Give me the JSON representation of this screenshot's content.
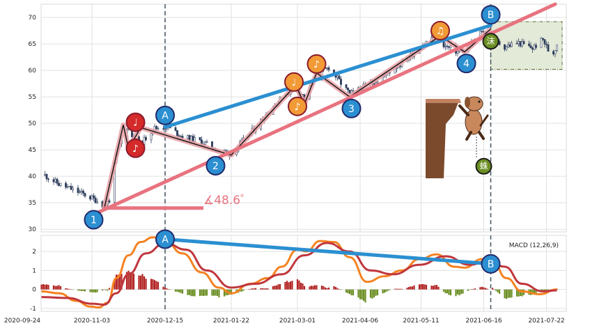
{
  "chart_data": [
    {
      "type": "candlestick",
      "title": "",
      "x_range": [
        "2020-09-24",
        "2021-08-02"
      ],
      "ylim": [
        29.5,
        72.5
      ],
      "y_ticks": [
        30,
        35,
        40,
        45,
        50,
        55,
        60,
        65,
        70
      ],
      "grid": true,
      "price_path": [
        [
          "2020-10-07",
          40.2
        ],
        [
          "2020-10-15",
          38.5
        ],
        [
          "2020-10-22",
          37.6
        ],
        [
          "2020-10-30",
          36.5
        ],
        [
          "2020-11-06",
          35.4
        ],
        [
          "2020-11-10",
          34.4
        ],
        [
          "2020-11-13",
          35.6
        ],
        [
          "2020-11-17",
          44.0
        ],
        [
          "2020-11-21",
          48.0
        ],
        [
          "2020-11-24",
          50.0
        ],
        [
          "2020-11-27",
          47.0
        ],
        [
          "2020-12-01",
          46.0
        ],
        [
          "2020-12-08",
          49.0
        ],
        [
          "2020-12-16",
          49.4
        ],
        [
          "2020-12-25",
          47.5
        ],
        [
          "2021-01-05",
          46.5
        ],
        [
          "2021-01-14",
          45.0
        ],
        [
          "2021-01-22",
          44.2
        ],
        [
          "2021-02-03",
          48.5
        ],
        [
          "2021-02-13",
          52.5
        ],
        [
          "2021-02-23",
          55.8
        ],
        [
          "2021-03-01",
          56.5
        ],
        [
          "2021-03-05",
          54.8
        ],
        [
          "2021-03-12",
          59.0
        ],
        [
          "2021-03-19",
          60.6
        ],
        [
          "2021-03-25",
          58.0
        ],
        [
          "2021-03-31",
          55.5
        ],
        [
          "2021-04-08",
          56.8
        ],
        [
          "2021-04-18",
          58.6
        ],
        [
          "2021-04-30",
          61.5
        ],
        [
          "2021-05-10",
          64.2
        ],
        [
          "2021-05-19",
          66.8
        ],
        [
          "2021-05-25",
          64.5
        ],
        [
          "2021-06-01",
          63.5
        ],
        [
          "2021-06-07",
          64.0
        ],
        [
          "2021-06-15",
          67.5
        ],
        [
          "2021-06-20",
          66.0
        ],
        [
          "2021-06-28",
          64.5
        ],
        [
          "2021-07-06",
          65.2
        ],
        [
          "2021-07-14",
          64.2
        ],
        [
          "2021-07-20",
          65.8
        ],
        [
          "2021-07-25",
          62.5
        ],
        [
          "2021-07-28",
          65.0
        ]
      ],
      "zigzag": [
        [
          "2020-11-10",
          33.9
        ],
        [
          "2020-11-21",
          49.7
        ],
        [
          "2020-11-24",
          45.2
        ],
        [
          "2020-12-01",
          49.2
        ],
        [
          "2021-01-22",
          44.0
        ],
        [
          "2021-02-28",
          57.2
        ],
        [
          "2021-03-05",
          53.6
        ],
        [
          "2021-03-12",
          59.5
        ],
        [
          "2021-03-31",
          55.0
        ],
        [
          "2021-05-22",
          66.5
        ],
        [
          "2021-06-05",
          63.5
        ],
        [
          "2021-06-20",
          67.8
        ]
      ],
      "trend_lines": [
        {
          "color": "#e8737f",
          "from": [
            "2020-11-02",
            32.5
          ],
          "to": [
            "2021-07-27",
            72.5
          ]
        },
        {
          "color": "#2b8fd1",
          "from": [
            "2020-12-15",
            49.3
          ],
          "to": [
            "2021-06-20",
            68.5
          ]
        }
      ],
      "angle_line": {
        "from": [
          "2020-11-10",
          34.0
        ],
        "to": [
          "2021-01-06",
          34.0
        ]
      },
      "angle_label": "∡48.6゜",
      "vlines": [
        "2020-12-15",
        "2021-06-20"
      ],
      "range_box": {
        "from": [
          "2021-06-20",
          60.2
        ],
        "to": [
          "2021-07-31",
          69.2
        ]
      },
      "markers": [
        {
          "text": "1",
          "date": "2020-11-04",
          "price": 31.8,
          "color": "#2b8fd1"
        },
        {
          "text": "2",
          "date": "2021-01-13",
          "price": 42.0,
          "color": "#2b8fd1"
        },
        {
          "text": "3",
          "date": "2021-04-01",
          "price": 52.8,
          "color": "#2b8fd1"
        },
        {
          "text": "4",
          "date": "2021-06-06",
          "price": 61.3,
          "color": "#2b8fd1"
        },
        {
          "text": "A",
          "date": "2020-12-15",
          "price": 51.5,
          "color": "#2b8fd1"
        },
        {
          "text": "B",
          "date": "2021-06-20",
          "price": 70.5,
          "color": "#2b8fd1"
        },
        {
          "text": "♩",
          "date": "2020-11-28",
          "price": 50.2,
          "color": "#d42a2a"
        },
        {
          "text": "♪",
          "date": "2020-11-28",
          "price": 45.3,
          "color": "#d42a2a"
        },
        {
          "text": "♩",
          "date": "2021-02-27",
          "price": 57.8,
          "color": "#f19a36"
        },
        {
          "text": "♪",
          "date": "2021-03-01",
          "price": 53.2,
          "color": "#f19a36"
        },
        {
          "text": "♪",
          "date": "2021-03-12",
          "price": 61.2,
          "color": "#f19a36"
        },
        {
          "text": "♫",
          "date": "2021-05-22",
          "price": 67.5,
          "color": "#f19a36"
        }
      ],
      "notes": [
        {
          "text": "沫",
          "date": "2021-06-20",
          "price": 65.5,
          "color": "#6b8e23"
        },
        {
          "text": "蛛",
          "date": "2021-06-16",
          "price": 41.9,
          "color": "#6b8e23"
        }
      ]
    },
    {
      "type": "macd",
      "legend": "MACD (12,26,9)",
      "ylim": [
        -1.15,
        2.85
      ],
      "y_ticks": [
        -1,
        0,
        1,
        2
      ],
      "x_ticks": [
        "2020-09-24",
        "2020-11-03",
        "2020-12-15",
        "2021-01-22",
        "2021-03-01",
        "2021-04-06",
        "2021-05-11",
        "2021-06-16",
        "2021-07-22"
      ],
      "macd": [
        [
          "2020-10-05",
          -0.1
        ],
        [
          "2020-10-15",
          -0.2
        ],
        [
          "2020-10-25",
          -0.6
        ],
        [
          "2020-11-02",
          -0.9
        ],
        [
          "2020-11-07",
          -0.95
        ],
        [
          "2020-11-12",
          -0.7
        ],
        [
          "2020-11-17",
          0.6
        ],
        [
          "2020-11-24",
          1.8
        ],
        [
          "2020-12-01",
          2.5
        ],
        [
          "2020-12-08",
          2.75
        ],
        [
          "2020-12-15",
          2.55
        ],
        [
          "2020-12-25",
          1.9
        ],
        [
          "2021-01-05",
          0.9
        ],
        [
          "2021-01-15",
          0.1
        ],
        [
          "2021-01-22",
          -0.2
        ],
        [
          "2021-02-02",
          0.3
        ],
        [
          "2021-02-12",
          0.6
        ],
        [
          "2021-02-20",
          1.2
        ],
        [
          "2021-03-01",
          2.1
        ],
        [
          "2021-03-06",
          2.0
        ],
        [
          "2021-03-14",
          2.55
        ],
        [
          "2021-03-22",
          2.5
        ],
        [
          "2021-03-31",
          1.7
        ],
        [
          "2021-04-10",
          0.4
        ],
        [
          "2021-04-20",
          0.7
        ],
        [
          "2021-04-30",
          1.0
        ],
        [
          "2021-05-10",
          1.6
        ],
        [
          "2021-05-20",
          1.85
        ],
        [
          "2021-05-30",
          1.2
        ],
        [
          "2021-06-05",
          1.15
        ],
        [
          "2021-06-15",
          1.6
        ],
        [
          "2021-06-21",
          1.5
        ],
        [
          "2021-06-29",
          0.6
        ],
        [
          "2021-07-08",
          -0.1
        ],
        [
          "2021-07-18",
          -0.25
        ],
        [
          "2021-07-28",
          0.0
        ]
      ],
      "signal": [
        [
          "2020-10-05",
          -0.4
        ],
        [
          "2020-10-20",
          -0.45
        ],
        [
          "2020-11-03",
          -0.75
        ],
        [
          "2020-11-10",
          -0.8
        ],
        [
          "2020-11-17",
          -0.2
        ],
        [
          "2020-11-24",
          0.8
        ],
        [
          "2020-12-04",
          1.9
        ],
        [
          "2020-12-15",
          2.45
        ],
        [
          "2020-12-27",
          2.1
        ],
        [
          "2021-01-08",
          1.0
        ],
        [
          "2021-01-22",
          0.1
        ],
        [
          "2021-02-05",
          0.3
        ],
        [
          "2021-02-20",
          0.8
        ],
        [
          "2021-03-05",
          1.8
        ],
        [
          "2021-03-18",
          2.45
        ],
        [
          "2021-03-31",
          2.0
        ],
        [
          "2021-04-12",
          1.0
        ],
        [
          "2021-04-25",
          0.8
        ],
        [
          "2021-05-10",
          1.3
        ],
        [
          "2021-05-25",
          1.75
        ],
        [
          "2021-06-08",
          1.3
        ],
        [
          "2021-06-18",
          1.5
        ],
        [
          "2021-06-28",
          1.2
        ],
        [
          "2021-07-08",
          0.3
        ],
        [
          "2021-07-20",
          -0.1
        ],
        [
          "2021-07-28",
          -0.05
        ]
      ],
      "trend_line": {
        "from": [
          "2020-12-15",
          2.65
        ],
        "to": [
          "2021-06-20",
          1.35
        ]
      },
      "markers": [
        {
          "text": "A",
          "date": "2020-12-15",
          "value": 2.65,
          "color": "#2b8fd1"
        },
        {
          "text": "B",
          "date": "2021-06-20",
          "value": 1.35,
          "color": "#2b8fd1"
        }
      ]
    }
  ]
}
